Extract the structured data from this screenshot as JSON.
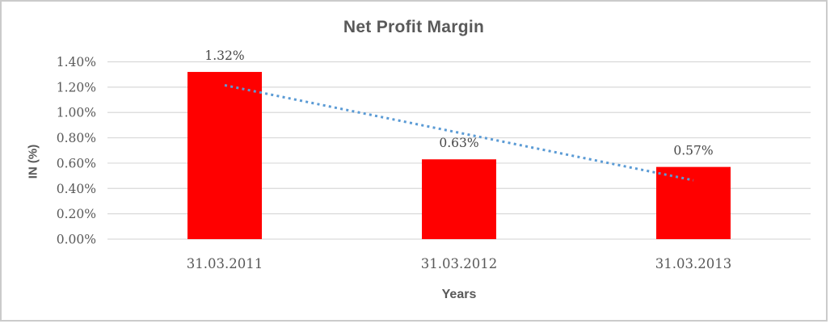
{
  "chart_data": {
    "type": "bar",
    "title": "Net Profit Margin",
    "categories": [
      "31.03.2011",
      "31.03.2012",
      "31.03.2013"
    ],
    "values": [
      1.32,
      0.63,
      0.57
    ],
    "data_labels": [
      "1.32%",
      "0.63%",
      "0.57%"
    ],
    "xlabel": "Years",
    "ylabel": "IN (%)",
    "ylim": [
      0,
      1.4
    ],
    "y_tick_labels": [
      "1.40%",
      "1.20%",
      "1.00%",
      "0.80%",
      "0.60%",
      "0.40%",
      "0.20%",
      "0.00%"
    ],
    "grid": true,
    "legend": "none",
    "trendline": {
      "type": "linear",
      "style": "dotted",
      "color": "#5B9BD5"
    },
    "colors": {
      "bar": "#FF0000",
      "gridline": "#D9D9D9",
      "text": "#595959",
      "data_label_text": "#474747",
      "border": "#CBCBCB",
      "background": "#FFFFFF"
    }
  }
}
